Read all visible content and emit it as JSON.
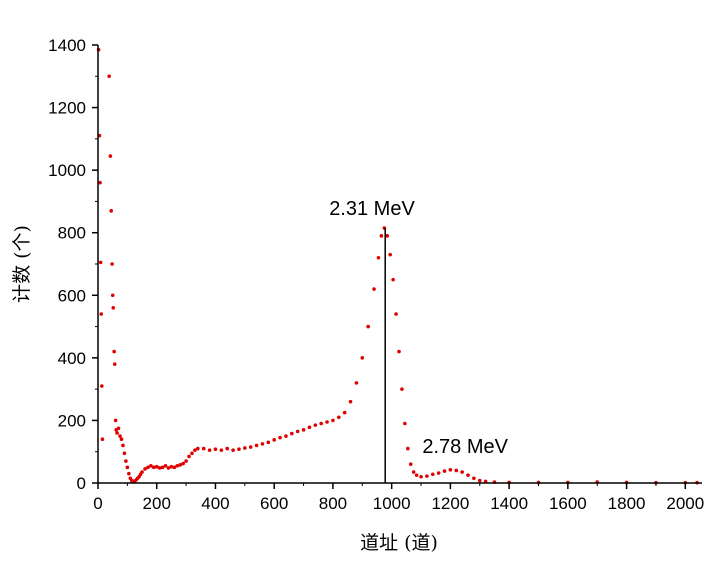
{
  "chart_data": {
    "type": "scatter",
    "title": "",
    "xlabel": "道址 (道)",
    "ylabel": "计数 (个)",
    "xlim": [
      0,
      2050
    ],
    "ylim": [
      0,
      1400
    ],
    "xticks": [
      0,
      200,
      400,
      600,
      800,
      1000,
      1200,
      1400,
      1600,
      1800,
      2000
    ],
    "yticks": [
      0,
      200,
      400,
      600,
      800,
      1000,
      1200,
      1400
    ],
    "marker_color": "#e00000",
    "grid": false,
    "legend": "none",
    "series": [
      {
        "values_xy": [
          [
            2,
            1385
          ],
          [
            5,
            1110
          ],
          [
            7,
            960
          ],
          [
            9,
            705
          ],
          [
            11,
            540
          ],
          [
            13,
            310
          ],
          [
            15,
            140
          ],
          [
            38,
            1300
          ],
          [
            42,
            1045
          ],
          [
            45,
            870
          ],
          [
            48,
            700
          ],
          [
            50,
            600
          ],
          [
            52,
            560
          ],
          [
            55,
            420
          ],
          [
            57,
            380
          ],
          [
            60,
            200
          ],
          [
            62,
            170
          ],
          [
            65,
            160
          ],
          [
            70,
            175
          ],
          [
            75,
            150
          ],
          [
            80,
            140
          ],
          [
            85,
            120
          ],
          [
            90,
            95
          ],
          [
            95,
            70
          ],
          [
            100,
            50
          ],
          [
            105,
            30
          ],
          [
            110,
            15
          ],
          [
            115,
            8
          ],
          [
            120,
            5
          ],
          [
            125,
            6
          ],
          [
            130,
            10
          ],
          [
            135,
            15
          ],
          [
            140,
            20
          ],
          [
            145,
            28
          ],
          [
            150,
            35
          ],
          [
            160,
            45
          ],
          [
            170,
            50
          ],
          [
            180,
            55
          ],
          [
            190,
            50
          ],
          [
            200,
            52
          ],
          [
            210,
            48
          ],
          [
            220,
            50
          ],
          [
            230,
            55
          ],
          [
            240,
            48
          ],
          [
            250,
            52
          ],
          [
            260,
            50
          ],
          [
            270,
            55
          ],
          [
            280,
            58
          ],
          [
            290,
            62
          ],
          [
            300,
            70
          ],
          [
            310,
            85
          ],
          [
            320,
            95
          ],
          [
            330,
            105
          ],
          [
            340,
            110
          ],
          [
            360,
            110
          ],
          [
            380,
            105
          ],
          [
            400,
            108
          ],
          [
            420,
            105
          ],
          [
            440,
            110
          ],
          [
            460,
            105
          ],
          [
            480,
            108
          ],
          [
            500,
            112
          ],
          [
            520,
            115
          ],
          [
            540,
            120
          ],
          [
            560,
            125
          ],
          [
            580,
            130
          ],
          [
            600,
            138
          ],
          [
            620,
            145
          ],
          [
            640,
            150
          ],
          [
            660,
            158
          ],
          [
            680,
            165
          ],
          [
            700,
            170
          ],
          [
            720,
            178
          ],
          [
            740,
            185
          ],
          [
            760,
            190
          ],
          [
            780,
            195
          ],
          [
            800,
            200
          ],
          [
            820,
            210
          ],
          [
            840,
            225
          ],
          [
            860,
            260
          ],
          [
            880,
            320
          ],
          [
            900,
            400
          ],
          [
            920,
            500
          ],
          [
            940,
            620
          ],
          [
            955,
            720
          ],
          [
            965,
            790
          ],
          [
            975,
            815
          ],
          [
            985,
            790
          ],
          [
            995,
            730
          ],
          [
            1005,
            650
          ],
          [
            1015,
            540
          ],
          [
            1025,
            420
          ],
          [
            1035,
            300
          ],
          [
            1045,
            190
          ],
          [
            1055,
            110
          ],
          [
            1065,
            60
          ],
          [
            1075,
            35
          ],
          [
            1085,
            25
          ],
          [
            1100,
            20
          ],
          [
            1120,
            22
          ],
          [
            1140,
            28
          ],
          [
            1160,
            32
          ],
          [
            1180,
            38
          ],
          [
            1200,
            42
          ],
          [
            1220,
            40
          ],
          [
            1240,
            35
          ],
          [
            1260,
            25
          ],
          [
            1280,
            15
          ],
          [
            1300,
            8
          ],
          [
            1320,
            5
          ],
          [
            1350,
            3
          ],
          [
            1400,
            2
          ],
          [
            1500,
            2
          ],
          [
            1600,
            2
          ],
          [
            1700,
            3
          ],
          [
            1800,
            2
          ],
          [
            1900,
            1
          ],
          [
            2000,
            1
          ],
          [
            2040,
            1
          ]
        ]
      }
    ],
    "annotations": [
      {
        "text": "2.31 MeV",
        "x": 978,
        "y": 815,
        "marker_line": true
      },
      {
        "text": "2.78 MeV",
        "x": 1200,
        "y": 42,
        "marker_line": false
      }
    ]
  }
}
